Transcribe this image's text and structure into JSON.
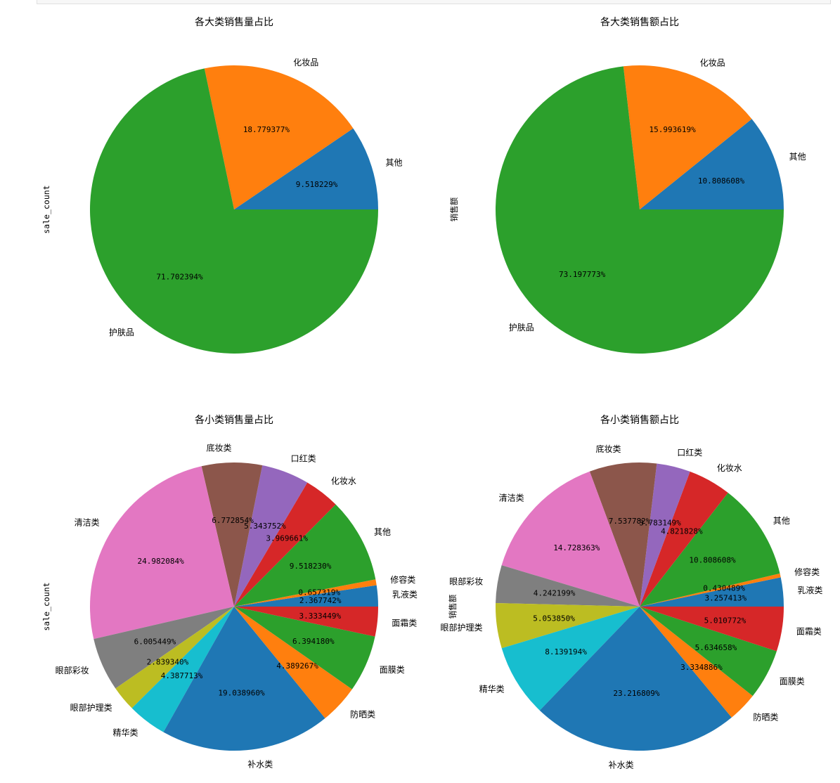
{
  "chart_data": [
    {
      "type": "pie",
      "title": "各大类销售量占比",
      "ylabel": "sale_count",
      "startangle": 0,
      "direction": "counterclockwise",
      "pct_decimals": 6,
      "categories": [
        "其他",
        "化妆品",
        "护肤品"
      ],
      "values": [
        9.518229,
        18.779378,
        71.702397
      ],
      "colors": [
        "#1f77b4",
        "#ff7f0e",
        "#2ca02c"
      ]
    },
    {
      "type": "pie",
      "title": "各大类销售额占比",
      "ylabel": "销售额",
      "startangle": 0,
      "direction": "counterclockwise",
      "pct_decimals": 6,
      "categories": [
        "其他",
        "化妆品",
        "护肤品"
      ],
      "values": [
        10.808608,
        15.99362,
        73.197776
      ],
      "colors": [
        "#1f77b4",
        "#ff7f0e",
        "#2ca02c"
      ]
    },
    {
      "type": "pie",
      "title": "各小类销售量占比",
      "ylabel": "sale_count",
      "startangle": 0,
      "direction": "counterclockwise",
      "pct_decimals": 6,
      "categories": [
        "乳液类",
        "修容类",
        "其他",
        "化妆水",
        "口红类",
        "底妆类",
        "清洁类",
        "眼部彩妆",
        "眼部护理类",
        "精华类",
        "补水类",
        "防晒类",
        "面膜类",
        "面霜类"
      ],
      "values": [
        2.367742,
        0.657319,
        9.518231,
        3.969661,
        5.343753,
        6.772855,
        24.982087,
        6.00545,
        2.83934,
        4.387714,
        19.038962,
        4.389268,
        6.394181,
        3.333449
      ],
      "colors": [
        "#1f77b4",
        "#ff7f0e",
        "#2ca02c",
        "#d62728",
        "#9467bd",
        "#8c564b",
        "#e377c2",
        "#7f7f7f",
        "#bcbd22",
        "#17becf",
        "#1f77b4",
        "#ff7f0e",
        "#2ca02c",
        "#d62728"
      ]
    },
    {
      "type": "pie",
      "title": "各小类销售额占比",
      "ylabel": "销售额",
      "startangle": 0,
      "direction": "counterclockwise",
      "pct_decimals": 6,
      "categories": [
        "乳液类",
        "修容类",
        "其他",
        "化妆水",
        "口红类",
        "底妆类",
        "清洁类",
        "眼部彩妆",
        "眼部护理类",
        "精华类",
        "补水类",
        "防晒类",
        "面膜类",
        "面霜类"
      ],
      "values": [
        3.257413,
        0.430489,
        10.808608,
        4.821828,
        3.783149,
        7.537782,
        14.728363,
        4.242199,
        5.05385,
        8.139194,
        23.216809,
        3.334886,
        5.634658,
        5.010772
      ],
      "colors": [
        "#1f77b4",
        "#ff7f0e",
        "#2ca02c",
        "#d62728",
        "#9467bd",
        "#8c564b",
        "#e377c2",
        "#7f7f7f",
        "#bcbd22",
        "#17becf",
        "#1f77b4",
        "#ff7f0e",
        "#2ca02c",
        "#d62728"
      ]
    }
  ]
}
